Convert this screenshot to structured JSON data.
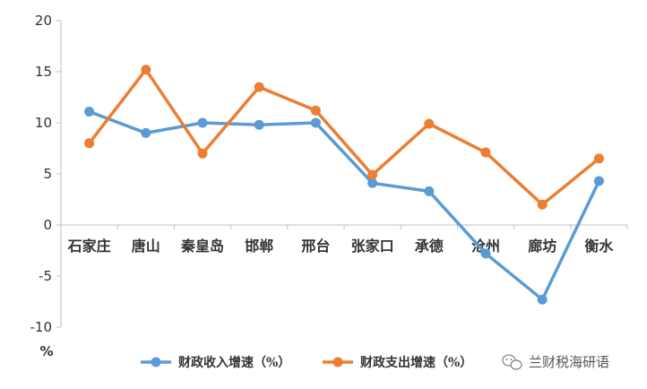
{
  "chart_data": {
    "type": "line",
    "categories": [
      "石家庄",
      "唐山",
      "秦皇岛",
      "邯郸",
      "邢台",
      "张家口",
      "承德",
      "沧州",
      "廊坊",
      "衡水"
    ],
    "series": [
      {
        "name": "财政收入增速（%）",
        "color": "#5B9BD5",
        "values": [
          11.1,
          9.0,
          10.0,
          9.8,
          10.0,
          4.1,
          3.3,
          -2.8,
          -7.3,
          4.3
        ]
      },
      {
        "name": "财政支出增速（%）",
        "color": "#ED7D31",
        "values": [
          8.0,
          15.2,
          7.0,
          13.5,
          11.2,
          4.9,
          9.9,
          7.1,
          2.0,
          6.5
        ]
      }
    ],
    "ylim": [
      -10,
      20
    ],
    "yticks": [
      "20",
      "15",
      "10",
      "5",
      "0",
      "-5",
      "-10"
    ],
    "ylabel": "%",
    "grid": false,
    "legend_position": "bottom"
  },
  "watermark": {
    "text": "兰财税海研语",
    "icon": "wechat-icon"
  }
}
